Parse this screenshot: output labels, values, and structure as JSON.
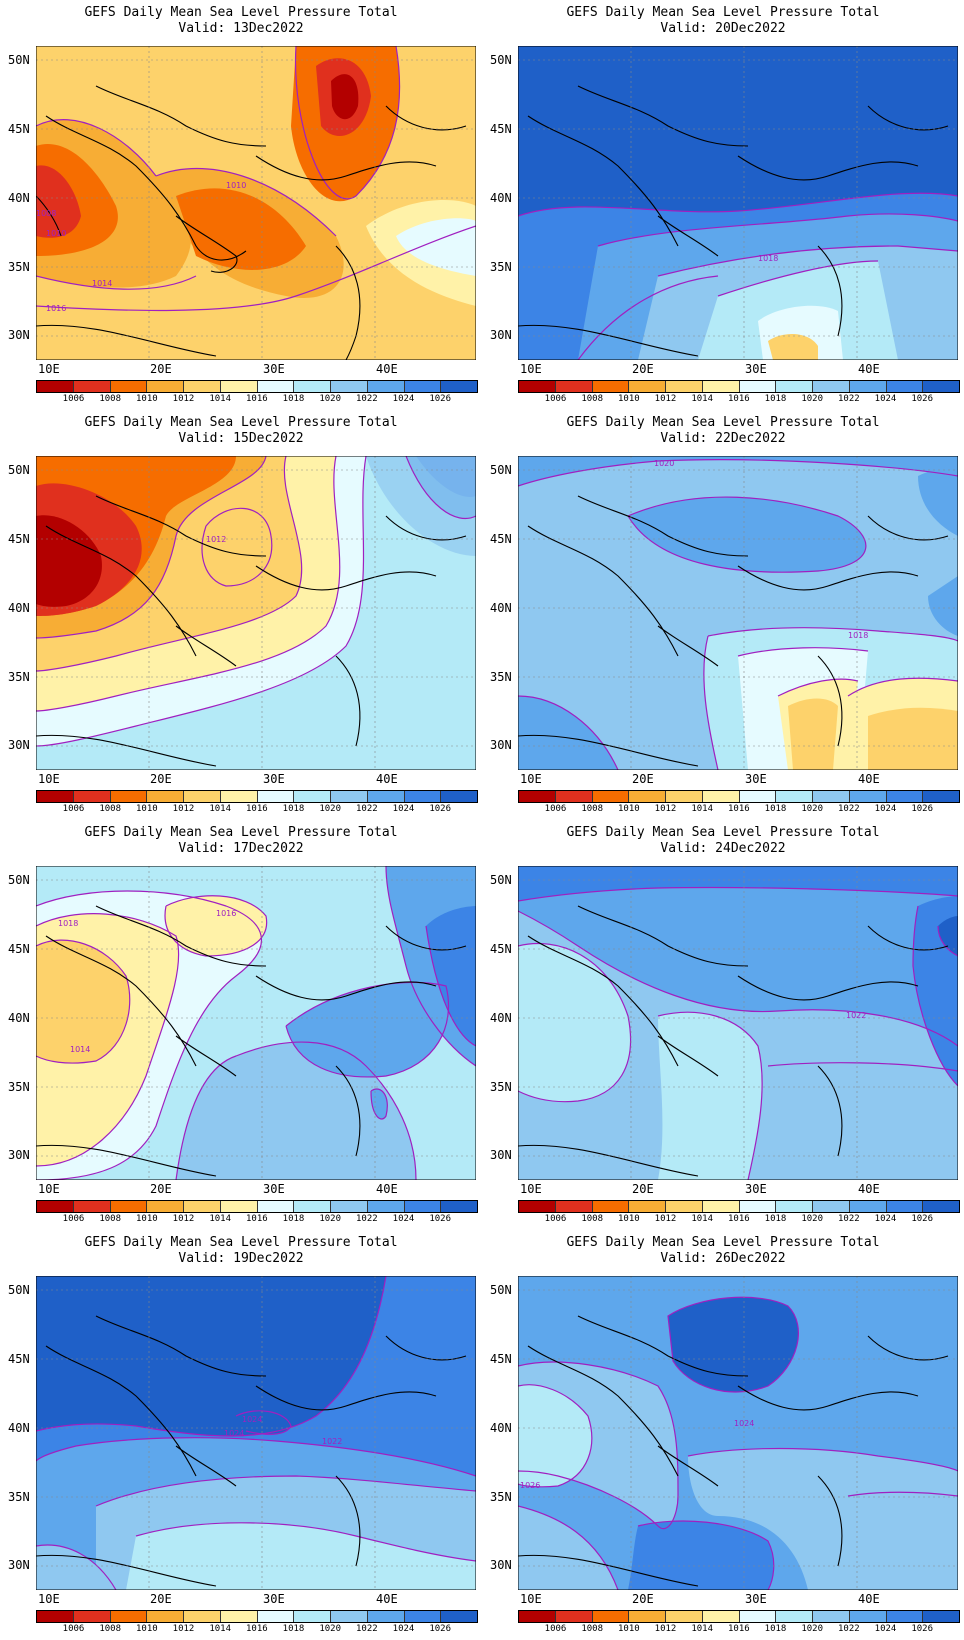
{
  "colorbar": {
    "levels": [
      "1006",
      "1008",
      "1010",
      "1012",
      "1014",
      "1016",
      "1018",
      "1020",
      "1022",
      "1024",
      "1026"
    ],
    "colors": [
      "#b30000",
      "#e0301e",
      "#f66d00",
      "#f7ad35",
      "#fdd26b",
      "#fff2a8",
      "#e6fbff",
      "#b4eaf7",
      "#8fc8f0",
      "#5ea7ec",
      "#3c84e6",
      "#1f60c8"
    ]
  },
  "axes": {
    "lat_labels": [
      "50N",
      "45N",
      "40N",
      "35N",
      "30N"
    ],
    "lon_labels": [
      "10E",
      "20E",
      "30E",
      "40E"
    ]
  },
  "panels": [
    {
      "title": "GEFS Daily Mean Sea Level Pressure Total",
      "valid": "Valid: 13Dec2022",
      "bg": "#fdd26b",
      "contour_labels": [
        {
          "text": "1008"
        },
        {
          "text": "1010"
        },
        {
          "text": "1014"
        },
        {
          "text": "1016"
        },
        {
          "text": "1010"
        }
      ]
    },
    {
      "title": "GEFS Daily Mean Sea Level Pressure Total",
      "valid": "Valid: 20Dec2022",
      "bg": "#3c84e6",
      "contour_labels": [
        {
          "text": "1018"
        }
      ]
    },
    {
      "title": "GEFS Daily Mean Sea Level Pressure Total",
      "valid": "Valid: 15Dec2022",
      "bg": "#fff2a8",
      "contour_labels": [
        {
          "text": "1012"
        }
      ]
    },
    {
      "title": "GEFS Daily Mean Sea Level Pressure Total",
      "valid": "Valid: 22Dec2022",
      "bg": "#8fc8f0",
      "contour_labels": [
        {
          "text": "1020"
        },
        {
          "text": "1018"
        }
      ]
    },
    {
      "title": "GEFS Daily Mean Sea Level Pressure Total",
      "valid": "Valid: 17Dec2022",
      "bg": "#b4eaf7",
      "contour_labels": [
        {
          "text": "1016"
        },
        {
          "text": "1018"
        },
        {
          "text": "1014"
        }
      ]
    },
    {
      "title": "GEFS Daily Mean Sea Level Pressure Total",
      "valid": "Valid: 24Dec2022",
      "bg": "#5ea7ec",
      "contour_labels": [
        {
          "text": "1022"
        }
      ]
    },
    {
      "title": "GEFS Daily Mean Sea Level Pressure Total",
      "valid": "Valid: 19Dec2022",
      "bg": "#3c84e6",
      "contour_labels": [
        {
          "text": "1024"
        },
        {
          "text": "1022"
        },
        {
          "text": "1024"
        }
      ]
    },
    {
      "title": "GEFS Daily Mean Sea Level Pressure Total",
      "valid": "Valid: 26Dec2022",
      "bg": "#5ea7ec",
      "contour_labels": [
        {
          "text": "1024"
        },
        {
          "text": "1026"
        }
      ]
    }
  ]
}
